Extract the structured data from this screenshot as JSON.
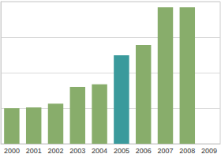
{
  "chart_data": {
    "type": "bar",
    "categories": [
      "2000",
      "2001",
      "2002",
      "2003",
      "2004",
      "2005",
      "2006",
      "2007",
      "2008",
      "2009"
    ],
    "values": [
      1.0,
      1.02,
      1.13,
      1.6,
      1.67,
      2.49,
      2.78,
      3.84,
      3.84,
      null
    ],
    "colors": [
      "#88ad6b",
      "#88ad6b",
      "#88ad6b",
      "#88ad6b",
      "#88ad6b",
      "#3a9a9c",
      "#88ad6b",
      "#88ad6b",
      "#88ad6b",
      "#88ad6b"
    ],
    "ylim": [
      0,
      4
    ],
    "yticks": [
      0,
      1,
      2,
      3,
      4
    ],
    "grid": true,
    "tick_labels": "x"
  }
}
